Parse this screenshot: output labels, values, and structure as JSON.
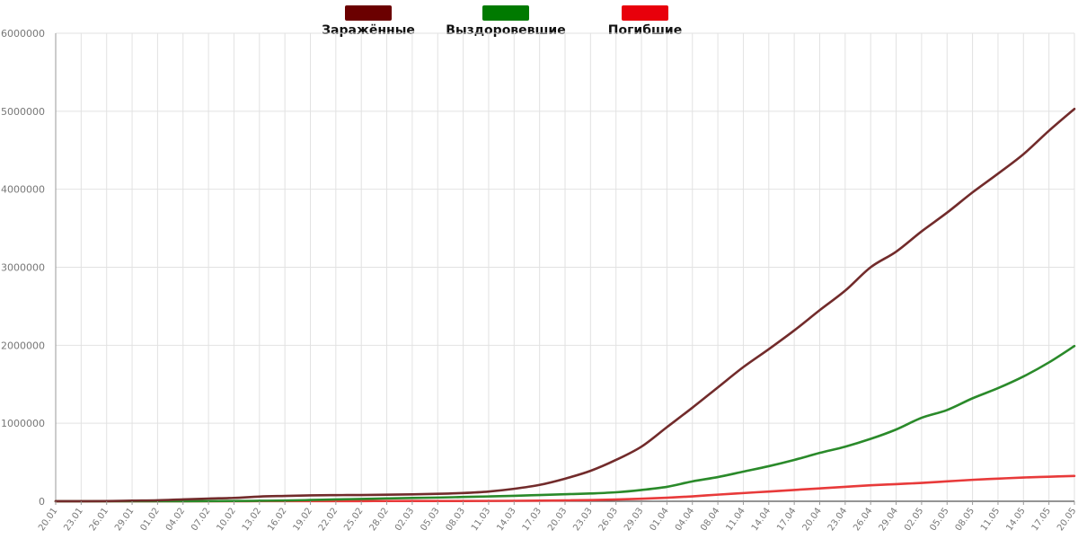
{
  "chart_data": {
    "type": "line",
    "title": "",
    "xlabel": "",
    "ylabel": "",
    "categories": [
      "20.01",
      "23.01",
      "26.01",
      "29.01",
      "01.02",
      "04.02",
      "07.02",
      "10.02",
      "13.02",
      "16.02",
      "19.02",
      "22.02",
      "25.02",
      "28.02",
      "02.03",
      "05.03",
      "08.03",
      "11.03",
      "14.03",
      "17.03",
      "20.03",
      "23.03",
      "26.03",
      "29.03",
      "01.04",
      "04.04",
      "08.04",
      "11.04",
      "14.04",
      "17.04",
      "20.04",
      "23.04",
      "26.04",
      "29.04",
      "02.05",
      "05.05",
      "08.05",
      "11.05",
      "14.05",
      "17.05",
      "20.05"
    ],
    "yticks": [
      "0",
      "1000000",
      "2000000",
      "3000000",
      "4000000",
      "5000000",
      "6000000"
    ],
    "ylim": [
      0,
      6000000
    ],
    "grid": true,
    "legend_position": "top",
    "series": [
      {
        "name": "Заражённые",
        "color": "#722b2b",
        "legend_color": "#6b0000",
        "values": [
          600,
          830,
          2100,
          7700,
          12000,
          24000,
          34500,
          43100,
          60300,
          68500,
          75600,
          78600,
          80400,
          84100,
          89000,
          95300,
          106000,
          125000,
          160000,
          210000,
          290000,
          390000,
          530000,
          700000,
          950000,
          1200000,
          1460000,
          1720000,
          1950000,
          2190000,
          2450000,
          2700000,
          3000000,
          3200000,
          3460000,
          3700000,
          3960000,
          4200000,
          4450000,
          4750000,
          5030000
        ]
      },
      {
        "name": "Выздоровевшие",
        "color": "#2a8a2a",
        "legend_color": "#007a00",
        "values": [
          0,
          30,
          60,
          130,
          300,
          900,
          1800,
          3500,
          6300,
          9400,
          16000,
          23500,
          29900,
          36600,
          42700,
          47400,
          55000,
          62000,
          70000,
          80000,
          90000,
          100000,
          115000,
          145000,
          185000,
          255000,
          310000,
          380000,
          450000,
          530000,
          620000,
          700000,
          800000,
          920000,
          1070000,
          1170000,
          1320000,
          1450000,
          1600000,
          1780000,
          1990000
        ]
      },
      {
        "name": "Погибшие",
        "color": "#e83a3a",
        "legend_color": "#e8000b",
        "values": [
          20,
          30,
          60,
          170,
          260,
          490,
          640,
          910,
          1370,
          1670,
          2120,
          2460,
          2700,
          2870,
          3120,
          3400,
          3600,
          4300,
          5800,
          8000,
          11000,
          15000,
          22000,
          32000,
          45000,
          63000,
          85000,
          105000,
          125000,
          145000,
          165000,
          185000,
          205000,
          220000,
          235000,
          255000,
          275000,
          290000,
          305000,
          315000,
          325000
        ]
      }
    ]
  }
}
